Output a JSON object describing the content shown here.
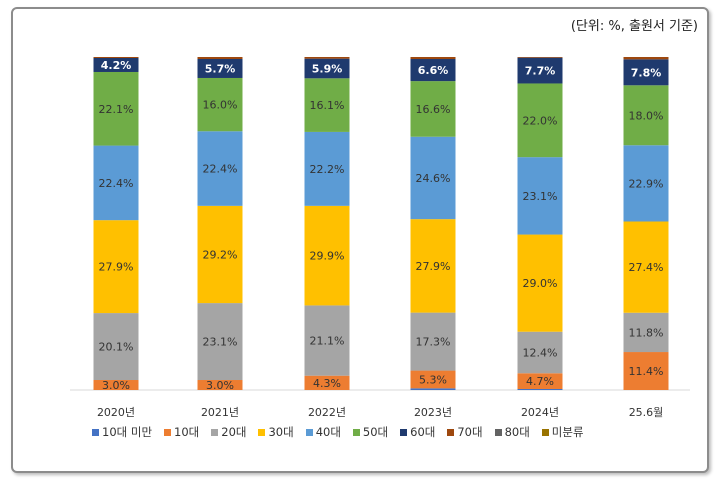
{
  "chart_data": {
    "type": "bar",
    "stacked": "percent",
    "unit_note": "(단위: %, 출원서 기준)",
    "categories": [
      "2020년",
      "2021년",
      "2022년",
      "2023년",
      "2024년",
      "25.6월"
    ],
    "series": [
      {
        "name": "10대 미만",
        "color": "#4472c4",
        "values": [
          0,
          0,
          0,
          0.5,
          0.3,
          0
        ],
        "labels": [
          "",
          "",
          "",
          "",
          "",
          ""
        ]
      },
      {
        "name": "10대",
        "color": "#ed7d31",
        "values": [
          3.0,
          3.0,
          4.3,
          5.3,
          4.7,
          11.4
        ],
        "labels": [
          "3.0%",
          "3.0%",
          "4.3%",
          "5.3%",
          "4.7%",
          "11.4%"
        ]
      },
      {
        "name": "20대",
        "color": "#a5a5a5",
        "values": [
          20.1,
          23.1,
          21.1,
          17.3,
          12.4,
          11.8
        ],
        "labels": [
          "20.1%",
          "23.1%",
          "21.1%",
          "17.3%",
          "12.4%",
          "11.8%"
        ]
      },
      {
        "name": "30대",
        "color": "#ffc000",
        "values": [
          27.9,
          29.2,
          29.9,
          27.9,
          29.0,
          27.4
        ],
        "labels": [
          "27.9%",
          "29.2%",
          "29.9%",
          "27.9%",
          "29.0%",
          "27.4%"
        ]
      },
      {
        "name": "40대",
        "color": "#5b9bd5",
        "values": [
          22.4,
          22.4,
          22.2,
          24.6,
          23.1,
          22.9
        ],
        "labels": [
          "22.4%",
          "22.4%",
          "22.2%",
          "24.6%",
          "23.1%",
          "22.9%"
        ]
      },
      {
        "name": "50대",
        "color": "#70ad47",
        "values": [
          22.1,
          16.0,
          16.1,
          16.6,
          22.0,
          18.0
        ],
        "labels": [
          "22.1%",
          "16.0%",
          "16.1%",
          "16.6%",
          "22.0%",
          "18.0%"
        ]
      },
      {
        "name": "60대",
        "color": "#1f3a6e",
        "values": [
          4.2,
          5.7,
          5.9,
          6.6,
          7.7,
          7.8
        ],
        "labels": [
          "4.2%",
          "5.7%",
          "5.9%",
          "6.6%",
          "7.7%",
          "7.8%"
        ]
      },
      {
        "name": "70대",
        "color": "#9e480e",
        "values": [
          0.3,
          0.6,
          0.5,
          0.6,
          0.2,
          0.7
        ],
        "labels": [
          "",
          "",
          "",
          "",
          "",
          ""
        ]
      },
      {
        "name": "80대",
        "color": "#636363",
        "values": [
          0,
          0,
          0,
          0,
          0,
          0
        ],
        "labels": [
          "",
          "",
          "",
          "",
          "",
          ""
        ]
      },
      {
        "name": "미분류",
        "color": "#997300",
        "values": [
          0,
          0,
          0,
          0,
          0,
          0
        ],
        "labels": [
          "",
          "",
          "",
          "",
          "",
          ""
        ]
      }
    ],
    "ylim": [
      0,
      100
    ],
    "grid": false,
    "legend": "bottom"
  }
}
